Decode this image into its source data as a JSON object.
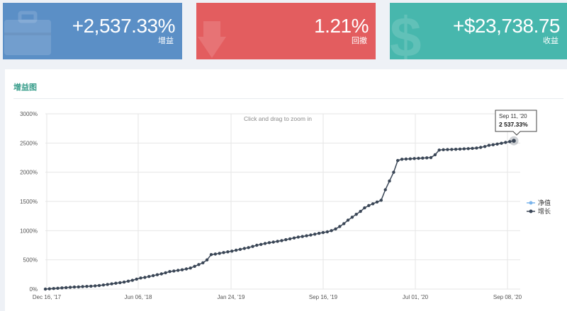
{
  "cards": [
    {
      "id": "gain",
      "value": "+2,537.33%",
      "label": "增益",
      "color": "#5b8fc6",
      "icon": "briefcase-icon"
    },
    {
      "id": "drawdown",
      "value": "1.21%",
      "label": "回撤",
      "color": "#e35d5f",
      "icon": "arrow-down-icon"
    },
    {
      "id": "profit",
      "value": "+$23,738.75",
      "label": "收益",
      "color": "#47b7ad",
      "icon": "dollar-icon"
    }
  ],
  "panel": {
    "title": "增益图",
    "zoom_hint": "Click and drag to zoom in"
  },
  "tooltip": {
    "date": "Sep 11, '20",
    "value": "2 537.33%"
  },
  "colors": {
    "line": "#3a4656",
    "equity": "#7cb5ec",
    "grid": "#e6e6e6",
    "title": "#3a9e8c"
  },
  "chart_data": {
    "type": "line",
    "ylim": [
      0,
      3000
    ],
    "y_ticks": [
      "0%",
      "500%",
      "1000%",
      "1500%",
      "2000%",
      "2500%",
      "3000%"
    ],
    "x_ticks": [
      "Dec 16, '17",
      "Jun 06, '18",
      "Jan 24, '19",
      "Sep 16, '19",
      "Jul 01, '20",
      "Sep 08, '20"
    ],
    "legend": [
      "净值",
      "增长"
    ],
    "legend_position": "right",
    "grid": true,
    "series": [
      {
        "name": "增长",
        "values": [
          0,
          5,
          10,
          15,
          20,
          25,
          30,
          35,
          38,
          42,
          46,
          50,
          55,
          62,
          70,
          80,
          90,
          100,
          110,
          120,
          135,
          150,
          170,
          190,
          200,
          215,
          230,
          245,
          260,
          280,
          300,
          310,
          320,
          330,
          345,
          360,
          390,
          420,
          450,
          500,
          590,
          600,
          612,
          625,
          638,
          650,
          665,
          680,
          695,
          710,
          730,
          750,
          765,
          780,
          795,
          805,
          818,
          830,
          845,
          860,
          875,
          890,
          900,
          912,
          925,
          940,
          955,
          968,
          980,
          1000,
          1030,
          1070,
          1120,
          1180,
          1230,
          1280,
          1330,
          1390,
          1430,
          1460,
          1490,
          1520,
          1700,
          1850,
          2000,
          2200,
          2222,
          2226,
          2230,
          2234,
          2238,
          2242,
          2246,
          2250,
          2300,
          2380,
          2385,
          2388,
          2390,
          2393,
          2396,
          2400,
          2404,
          2408,
          2415,
          2425,
          2440,
          2460,
          2470,
          2482,
          2495,
          2510,
          2525,
          2537.33
        ]
      }
    ]
  }
}
